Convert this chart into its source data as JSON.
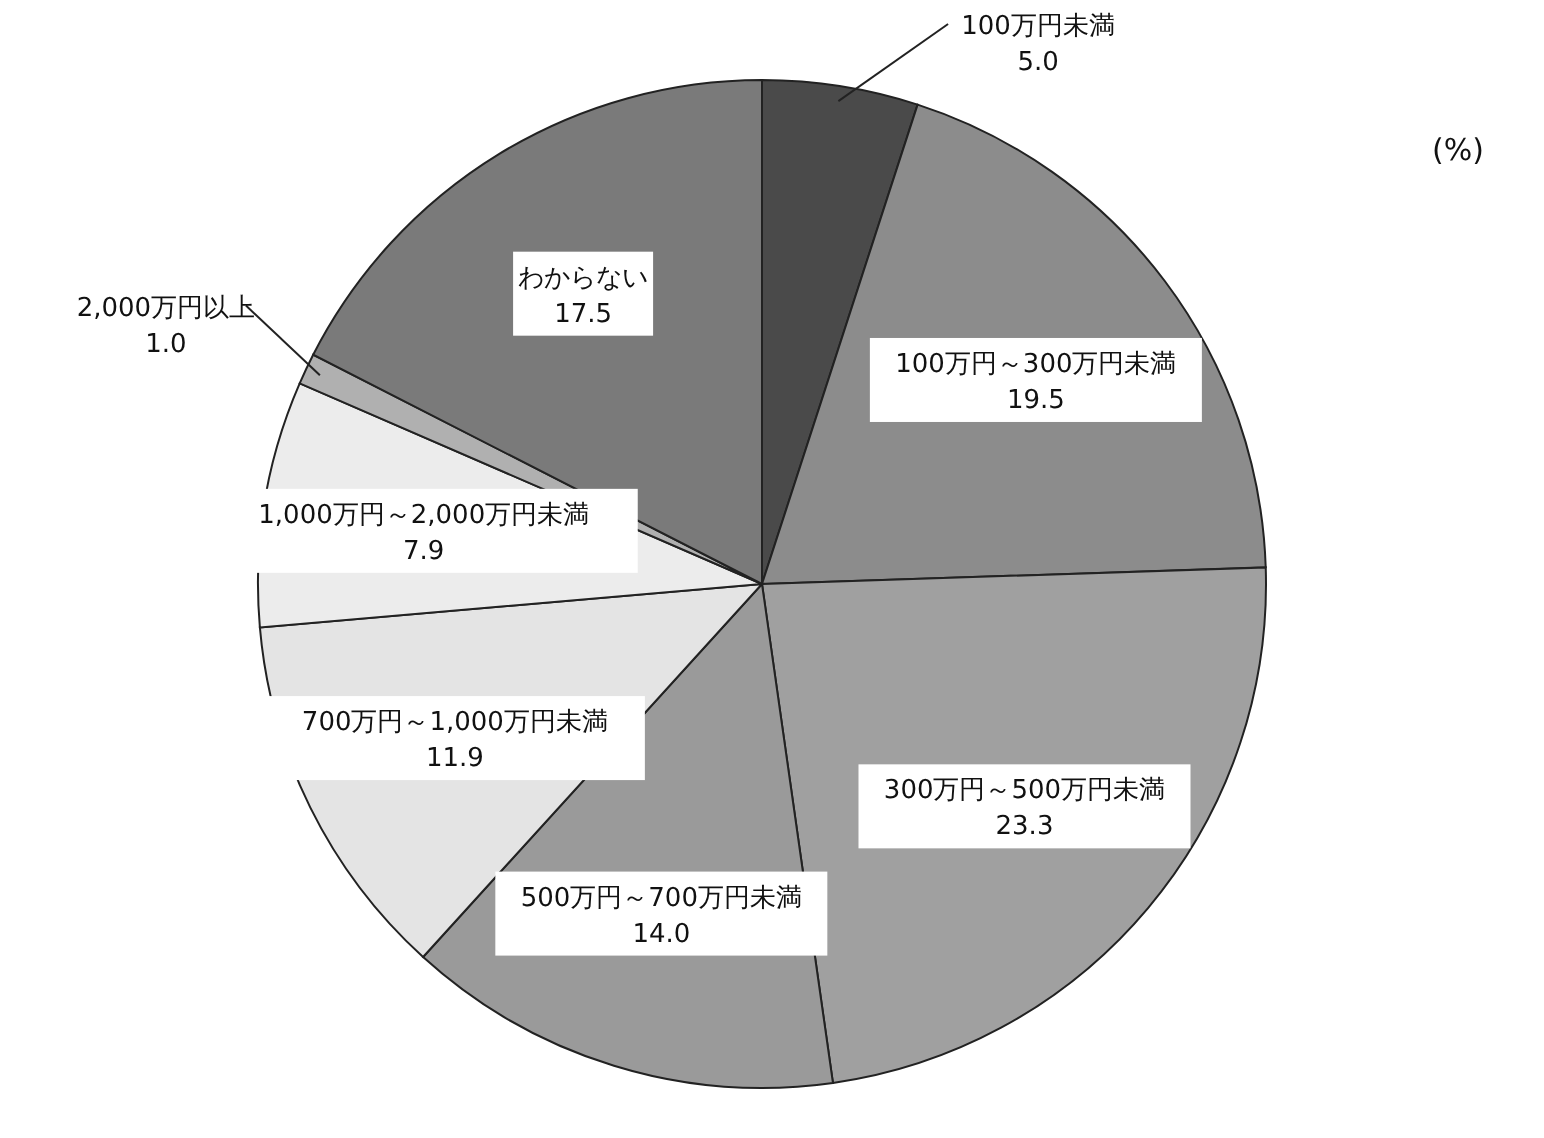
{
  "chart_data": {
    "type": "pie",
    "categories": [
      "100万円未満",
      "100万円～300万円未満",
      "300万円～500万円未満",
      "500万円～700万円未満",
      "700万円～1,000万円未満",
      "1,000万円～2,000万円未満",
      "2,000万円以上",
      "わからない"
    ],
    "values": [
      5.0,
      19.5,
      23.3,
      14.0,
      11.9,
      7.9,
      1.0,
      17.5
    ],
    "value_labels": [
      "5.0",
      "19.5",
      "23.3",
      "14.0",
      "11.9",
      "7.9",
      "1.0",
      "17.5"
    ],
    "colors": [
      "#4a4a4a",
      "#8c8c8c",
      "#a0a0a0",
      "#9a9a9a",
      "#e4e4e4",
      "#ececec",
      "#b0b0b0",
      "#7a7a7a"
    ],
    "annotations": [
      "(%)"
    ]
  }
}
